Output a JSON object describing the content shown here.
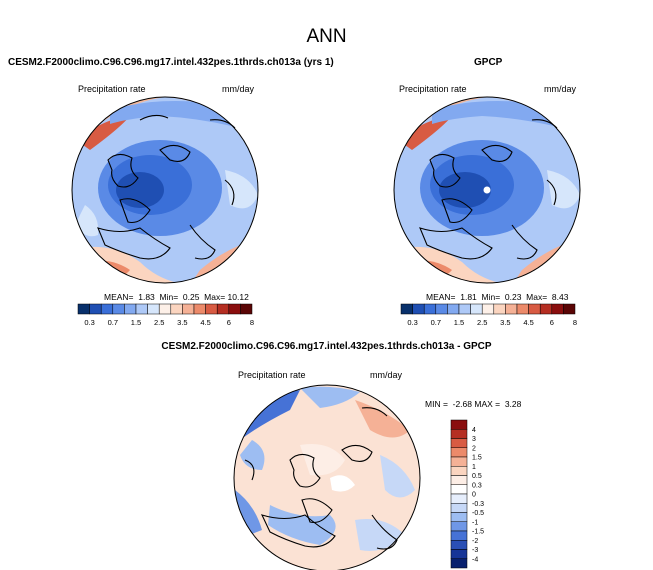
{
  "header": {
    "title": "ANN"
  },
  "panels": [
    {
      "id": "case",
      "title": "CESM2.F2000climo.C96.C96.mg17.intel.432pes.1thrds.ch013a (yrs 1)",
      "left_label": "Precipitation rate",
      "right_label": "mm/day",
      "stats": "MEAN=  1.83  Min=  0.25  Max= 10.12"
    },
    {
      "id": "obs",
      "title": "GPCP",
      "left_label": "Precipitation rate",
      "right_label": "mm/day",
      "stats": "MEAN=  1.81  Min=  0.23  Max=  8.43"
    },
    {
      "id": "diff",
      "title": "CESM2.F2000climo.C96.C96.mg17.intel.432pes.1thrds.ch013a - GPCP",
      "left_label": "Precipitation rate",
      "right_label": "mm/day",
      "stats": "MIN =  -2.68 MAX =  3.28"
    }
  ],
  "chart_data": [
    {
      "type": "heatmap",
      "projection": "polar-stereographic (north)",
      "title": "CESM2.F2000climo.C96.C96.mg17.intel.432pes.1thrds.ch013a (yrs 1)",
      "units": "mm/day",
      "stats": {
        "mean": 1.83,
        "min": 0.25,
        "max": 10.12
      },
      "colorbar": {
        "orientation": "horizontal",
        "levels": [
          0.3,
          0.7,
          1,
          1.5,
          2,
          2.5,
          3,
          3.5,
          4,
          4.5,
          5,
          6,
          7,
          8
        ],
        "tick_labels": [
          "0.3",
          "0.7",
          "1.5",
          "2.5",
          "3.5",
          "4.5",
          "6",
          "8"
        ],
        "colors": [
          "#08306b",
          "#1f4fb3",
          "#3a6fd8",
          "#5a8ae6",
          "#82a9f0",
          "#aec9f7",
          "#d6e6fb",
          "#fdf0e8",
          "#fbd5c0",
          "#f5b196",
          "#ec8a6a",
          "#d85b43",
          "#b52e22",
          "#8a0e0e",
          "#5a0505"
        ]
      }
    },
    {
      "type": "heatmap",
      "projection": "polar-stereographic (north)",
      "title": "GPCP",
      "units": "mm/day",
      "stats": {
        "mean": 1.81,
        "min": 0.23,
        "max": 8.43
      },
      "colorbar": {
        "orientation": "horizontal",
        "levels": [
          0.3,
          0.7,
          1,
          1.5,
          2,
          2.5,
          3,
          3.5,
          4,
          4.5,
          5,
          6,
          7,
          8
        ],
        "tick_labels": [
          "0.3",
          "0.7",
          "1.5",
          "2.5",
          "3.5",
          "4.5",
          "6",
          "8"
        ],
        "colors": [
          "#08306b",
          "#1f4fb3",
          "#3a6fd8",
          "#5a8ae6",
          "#82a9f0",
          "#aec9f7",
          "#d6e6fb",
          "#fdf0e8",
          "#fbd5c0",
          "#f5b196",
          "#ec8a6a",
          "#d85b43",
          "#b52e22",
          "#8a0e0e",
          "#5a0505"
        ]
      }
    },
    {
      "type": "heatmap",
      "projection": "polar-stereographic (north)",
      "title": "CESM2.F2000climo.C96.C96.mg17.intel.432pes.1thrds.ch013a - GPCP",
      "units": "mm/day",
      "stats": {
        "min": -2.68,
        "max": 3.28
      },
      "colorbar": {
        "orientation": "vertical",
        "tick_labels": [
          "4",
          "3",
          "2",
          "1.5",
          "1",
          "0.5",
          "0.3",
          "0",
          "-0.3",
          "-0.5",
          "-1",
          "-1.5",
          "-2",
          "-3",
          "-4"
        ],
        "colors": [
          "#8a0e0e",
          "#b52e22",
          "#d85b43",
          "#ec8a6a",
          "#f5b196",
          "#fbd5c0",
          "#fdeee6",
          "#ffffff",
          "#e6eefc",
          "#c6d8f7",
          "#9dbdf2",
          "#6f97e6",
          "#4672d6",
          "#2a4fb5",
          "#173597",
          "#08206e"
        ]
      }
    }
  ]
}
